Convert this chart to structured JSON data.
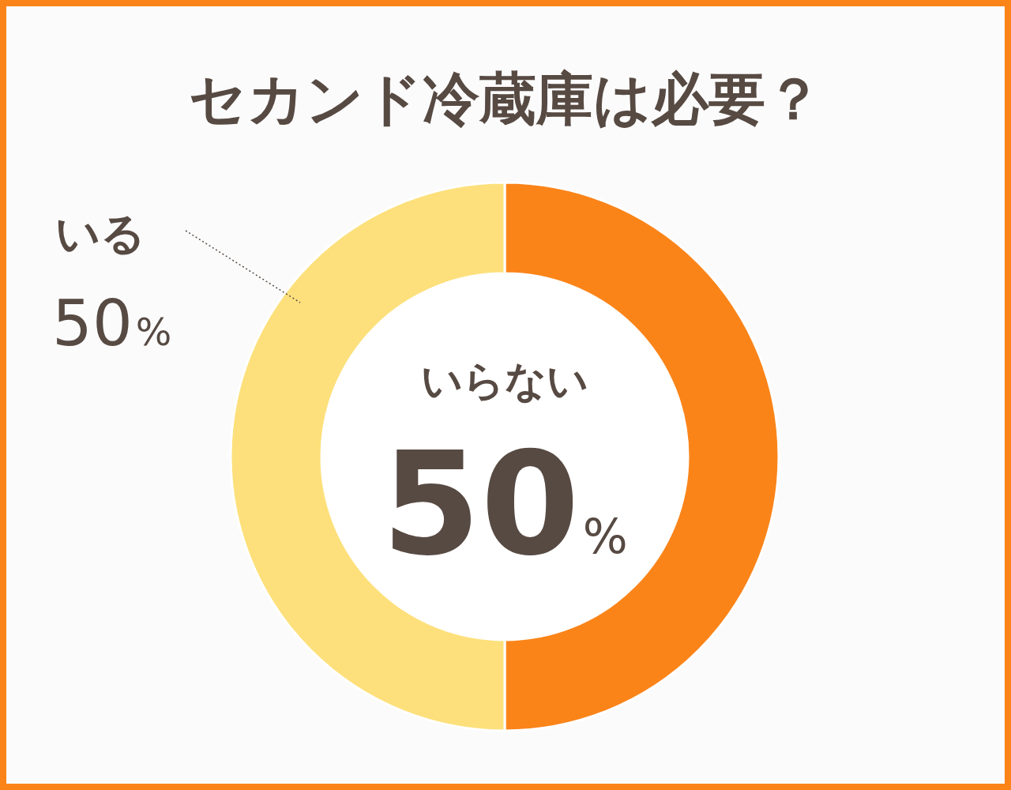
{
  "chart_data": {
    "type": "donut",
    "title": "セカンド冷蔵庫は必要？",
    "categories": [
      "いらない",
      "いる"
    ],
    "values": [
      50,
      50
    ],
    "colors": [
      "#fb8419",
      "#fde07b"
    ],
    "value_labels": [
      "50%",
      "50%"
    ],
    "legend": false
  }
}
